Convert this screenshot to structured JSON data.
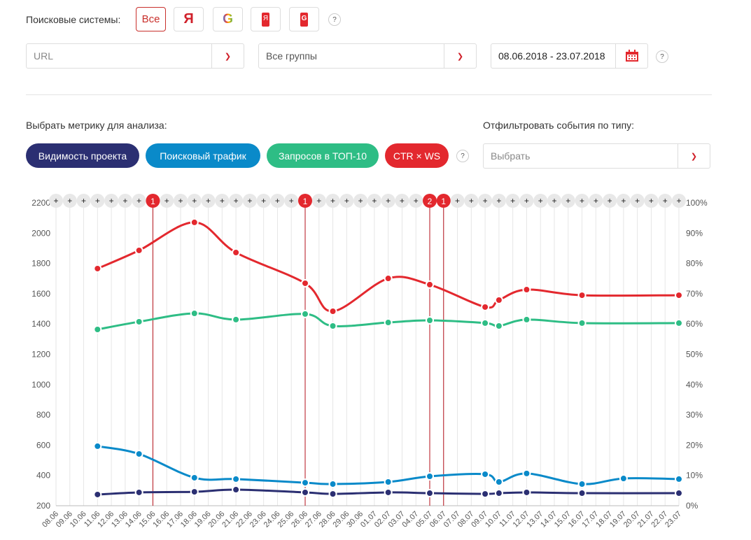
{
  "filters": {
    "engines_label": "Поисковые системы:",
    "engines": [
      {
        "label": "Все",
        "icon": "all"
      },
      {
        "label": "Я",
        "icon": "yandex-icon"
      },
      {
        "label": "G",
        "icon": "google-icon"
      },
      {
        "label": "Я",
        "icon": "yandex-mobile-icon"
      },
      {
        "label": "G",
        "icon": "google-mobile-icon"
      }
    ],
    "help": "?",
    "url_placeholder": "URL",
    "groups_value": "Все группы",
    "date_range": "08.06.2018 - 23.07.2018"
  },
  "metrics": {
    "label": "Выбрать метрику для анализа:",
    "pills": [
      {
        "label": "Видимость проекта",
        "color": "#2b2f72"
      },
      {
        "label": "Поисковый трафик",
        "color": "#0a8ac9"
      },
      {
        "label": "Запросов в ТОП-10",
        "color": "#2ebd85"
      },
      {
        "label": "CTR × WS",
        "color": "#e3282e"
      }
    ],
    "events_label": "Отфильтровать события по типу:",
    "events_placeholder": "Выбрать"
  },
  "chart_data": {
    "type": "line",
    "dates": [
      "08.06",
      "09.06",
      "10.06",
      "11.06",
      "12.06",
      "13.06",
      "14.06",
      "15.06",
      "16.06",
      "17.06",
      "18.06",
      "19.06",
      "20.06",
      "21.06",
      "22.06",
      "23.06",
      "24.06",
      "25.06",
      "26.06",
      "27.06",
      "28.06",
      "29.06",
      "30.06",
      "01.07",
      "02.07",
      "03.07",
      "04.07",
      "05.07",
      "06.07",
      "07.07",
      "08.07",
      "09.07",
      "10.07",
      "11.07",
      "12.07",
      "13.07",
      "14.07",
      "15.07",
      "16.07",
      "17.07",
      "18.07",
      "19.07",
      "20.07",
      "21.07",
      "22.07",
      "23.07"
    ],
    "y_left": {
      "ticks": [
        "200",
        "400",
        "600",
        "800",
        "1000",
        "1200",
        "1400",
        "1600",
        "1800",
        "2000",
        "2200"
      ],
      "range": [
        200,
        2200
      ]
    },
    "y_right": {
      "ticks": [
        "0%",
        "10%",
        "20%",
        "30%",
        "40%",
        "50%",
        "60%",
        "70%",
        "80%",
        "90%",
        "100%"
      ],
      "range": [
        0,
        100
      ]
    },
    "events": [
      {
        "date": "15.06",
        "count": "1"
      },
      {
        "date": "26.06",
        "count": "1"
      },
      {
        "date": "05.07",
        "count": "2"
      },
      {
        "date": "06.07",
        "count": "1"
      }
    ],
    "add_event_symbol": "+",
    "series": [
      {
        "name": "CTR × WS",
        "color": "#e3282e",
        "points": [
          [
            "11.06",
            1766
          ],
          [
            "14.06",
            1886
          ],
          [
            "18.06",
            2071
          ],
          [
            "21.06",
            1872
          ],
          [
            "26.06",
            1669
          ],
          [
            "28.06",
            1484
          ],
          [
            "02.07",
            1701
          ],
          [
            "05.07",
            1660
          ],
          [
            "09.07",
            1512
          ],
          [
            "10.07",
            1558
          ],
          [
            "12.07",
            1627
          ],
          [
            "16.07",
            1590
          ],
          [
            "23.07",
            1590
          ]
        ]
      },
      {
        "name": "Запросов в ТОП-10",
        "color": "#2ebd85",
        "points": [
          [
            "11.06",
            1364
          ],
          [
            "14.06",
            1415
          ],
          [
            "18.06",
            1470
          ],
          [
            "21.06",
            1429
          ],
          [
            "26.06",
            1466
          ],
          [
            "28.06",
            1387
          ],
          [
            "02.07",
            1410
          ],
          [
            "05.07",
            1424
          ],
          [
            "09.07",
            1406
          ],
          [
            "10.07",
            1387
          ],
          [
            "12.07",
            1429
          ],
          [
            "16.07",
            1406
          ],
          [
            "23.07",
            1406
          ]
        ]
      },
      {
        "name": "Поисковый трафик",
        "color": "#0a8ac9",
        "points": [
          [
            "11.06",
            593
          ],
          [
            "14.06",
            542
          ],
          [
            "18.06",
            385
          ],
          [
            "21.06",
            376
          ],
          [
            "26.06",
            352
          ],
          [
            "28.06",
            343
          ],
          [
            "02.07",
            357
          ],
          [
            "05.07",
            394
          ],
          [
            "09.07",
            408
          ],
          [
            "10.07",
            357
          ],
          [
            "12.07",
            413
          ],
          [
            "16.07",
            343
          ],
          [
            "19.07",
            380
          ],
          [
            "23.07",
            376
          ]
        ]
      },
      {
        "name": "Видимость проекта",
        "color": "#2b2f72",
        "points": [
          [
            "11.06",
            274
          ],
          [
            "14.06",
            288
          ],
          [
            "18.06",
            292
          ],
          [
            "21.06",
            306
          ],
          [
            "26.06",
            288
          ],
          [
            "28.06",
            278
          ],
          [
            "02.07",
            288
          ],
          [
            "05.07",
            283
          ],
          [
            "09.07",
            278
          ],
          [
            "10.07",
            283
          ],
          [
            "12.07",
            288
          ],
          [
            "16.07",
            283
          ],
          [
            "23.07",
            283
          ]
        ]
      }
    ]
  }
}
